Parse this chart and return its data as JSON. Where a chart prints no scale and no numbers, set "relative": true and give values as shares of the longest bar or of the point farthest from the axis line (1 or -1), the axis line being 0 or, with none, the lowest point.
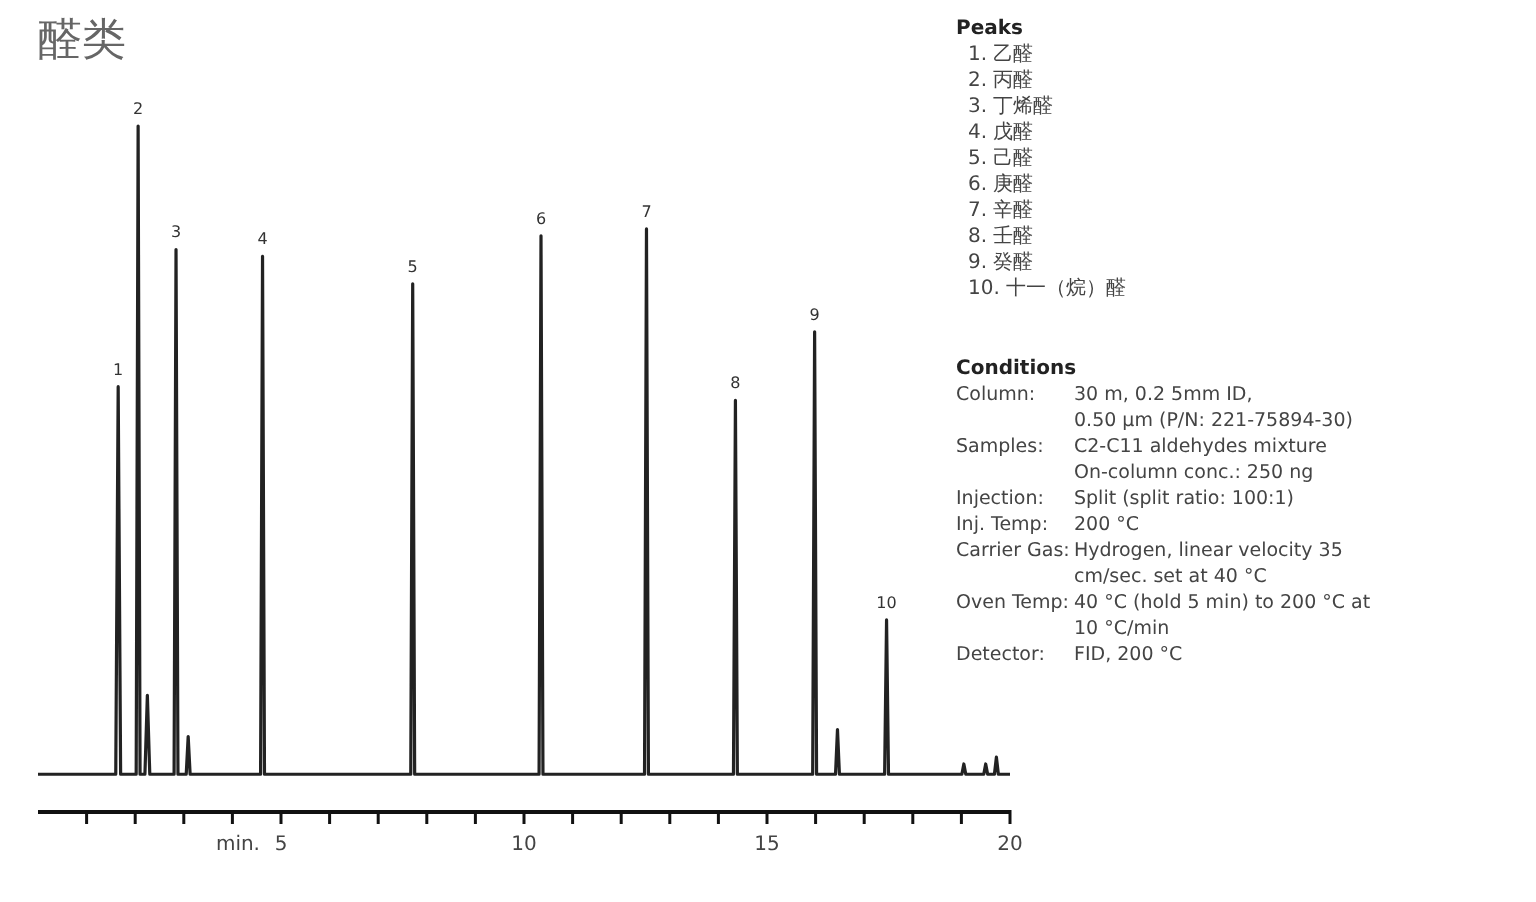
{
  "chart_data": {
    "type": "line",
    "title": "醛类",
    "xlabel": "min.",
    "relative": true,
    "xlim": [
      0,
      20
    ],
    "xticks": [
      {
        "value": 1,
        "label": null
      },
      {
        "value": 2,
        "label": null
      },
      {
        "value": 3,
        "label": null
      },
      {
        "value": 4,
        "label": null
      },
      5,
      {
        "value": 6,
        "label": null
      },
      {
        "value": 7,
        "label": null
      },
      {
        "value": 8,
        "label": null
      },
      {
        "value": 9,
        "label": null
      },
      10,
      {
        "value": 11,
        "label": null
      },
      {
        "value": 12,
        "label": null
      },
      {
        "value": 13,
        "label": null
      },
      {
        "value": 14,
        "label": null
      },
      15,
      {
        "value": 16,
        "label": null
      },
      {
        "value": 17,
        "label": null
      },
      {
        "value": 18,
        "label": null
      },
      {
        "value": 19,
        "label": null
      },
      20
    ],
    "grid": false,
    "marker": "none",
    "line_style": "solid",
    "series": [
      {
        "color": "#222222",
        "x": [
          0,
          1.6,
          1.65,
          1.7,
          2.02,
          2.06,
          2.1,
          2.2,
          2.25,
          2.3,
          2.8,
          2.84,
          2.88,
          3.05,
          3.09,
          3.13,
          4.58,
          4.62,
          4.66,
          7.67,
          7.71,
          7.75,
          10.31,
          10.35,
          10.39,
          12.48,
          12.52,
          12.56,
          14.31,
          14.35,
          14.39,
          15.94,
          15.98,
          16.02,
          16.41,
          16.45,
          16.49,
          17.42,
          17.46,
          17.5,
          19.01,
          19.05,
          19.09,
          19.46,
          19.5,
          19.54,
          19.68,
          19.72,
          19.76,
          20
        ],
        "values": [
          0.055,
          0.055,
          0.62,
          0.055,
          0.055,
          1,
          0.055,
          0.055,
          0.17,
          0.055,
          0.055,
          0.82,
          0.055,
          0.055,
          0.11,
          0.055,
          0.055,
          0.81,
          0.055,
          0.055,
          0.77,
          0.055,
          0.055,
          0.84,
          0.055,
          0.055,
          0.85,
          0.055,
          0.055,
          0.6,
          0.055,
          0.055,
          0.7,
          0.055,
          0.055,
          0.12,
          0.055,
          0.055,
          0.28,
          0.055,
          0.055,
          0.07,
          0.055,
          0.055,
          0.07,
          0.055,
          0.055,
          0.08,
          0.055,
          0.055
        ]
      }
    ],
    "annotations": [
      {
        "text": "1",
        "x": 1.65,
        "y": 0.62
      },
      {
        "text": "2",
        "x": 2.06,
        "y": 1
      },
      {
        "text": "3",
        "x": 2.84,
        "y": 0.82
      },
      {
        "text": "4",
        "x": 4.62,
        "y": 0.81
      },
      {
        "text": "5",
        "x": 7.71,
        "y": 0.77
      },
      {
        "text": "6",
        "x": 10.35,
        "y": 0.84
      },
      {
        "text": "7",
        "x": 12.52,
        "y": 0.85
      },
      {
        "text": "8",
        "x": 14.35,
        "y": 0.6
      },
      {
        "text": "9",
        "x": 15.98,
        "y": 0.7
      },
      {
        "text": "10",
        "x": 17.46,
        "y": 0.28
      },
      "Peaks",
      "1. 乙醛",
      "2. 丙醛",
      "3. 丁烯醛",
      "4. 戊醛",
      "5. 己醛",
      "6. 庚醛",
      "7. 辛醛",
      "8. 壬醛",
      "9. 癸醛",
      "10. 十一（烷）醛",
      "Conditions",
      "Column:",
      "30 m, 0.2 5mm ID,",
      "0.50 µm (P/N: 221-75894-30)",
      "Samples:",
      "C2-C11 aldehydes mixture",
      "On-column conc.: 250 ng",
      "Injection:",
      "Split (split ratio: 100:1)",
      "Inj. Temp:",
      "200 °C",
      "Carrier Gas:",
      "Hydrogen, linear velocity 35",
      "cm/sec. set at 40 °C",
      "Oven Temp:",
      "40 °C (hold 5 min) to 200 °C at",
      "10 °C/min",
      "Detector:",
      "FID, 200 °C"
    ]
  }
}
